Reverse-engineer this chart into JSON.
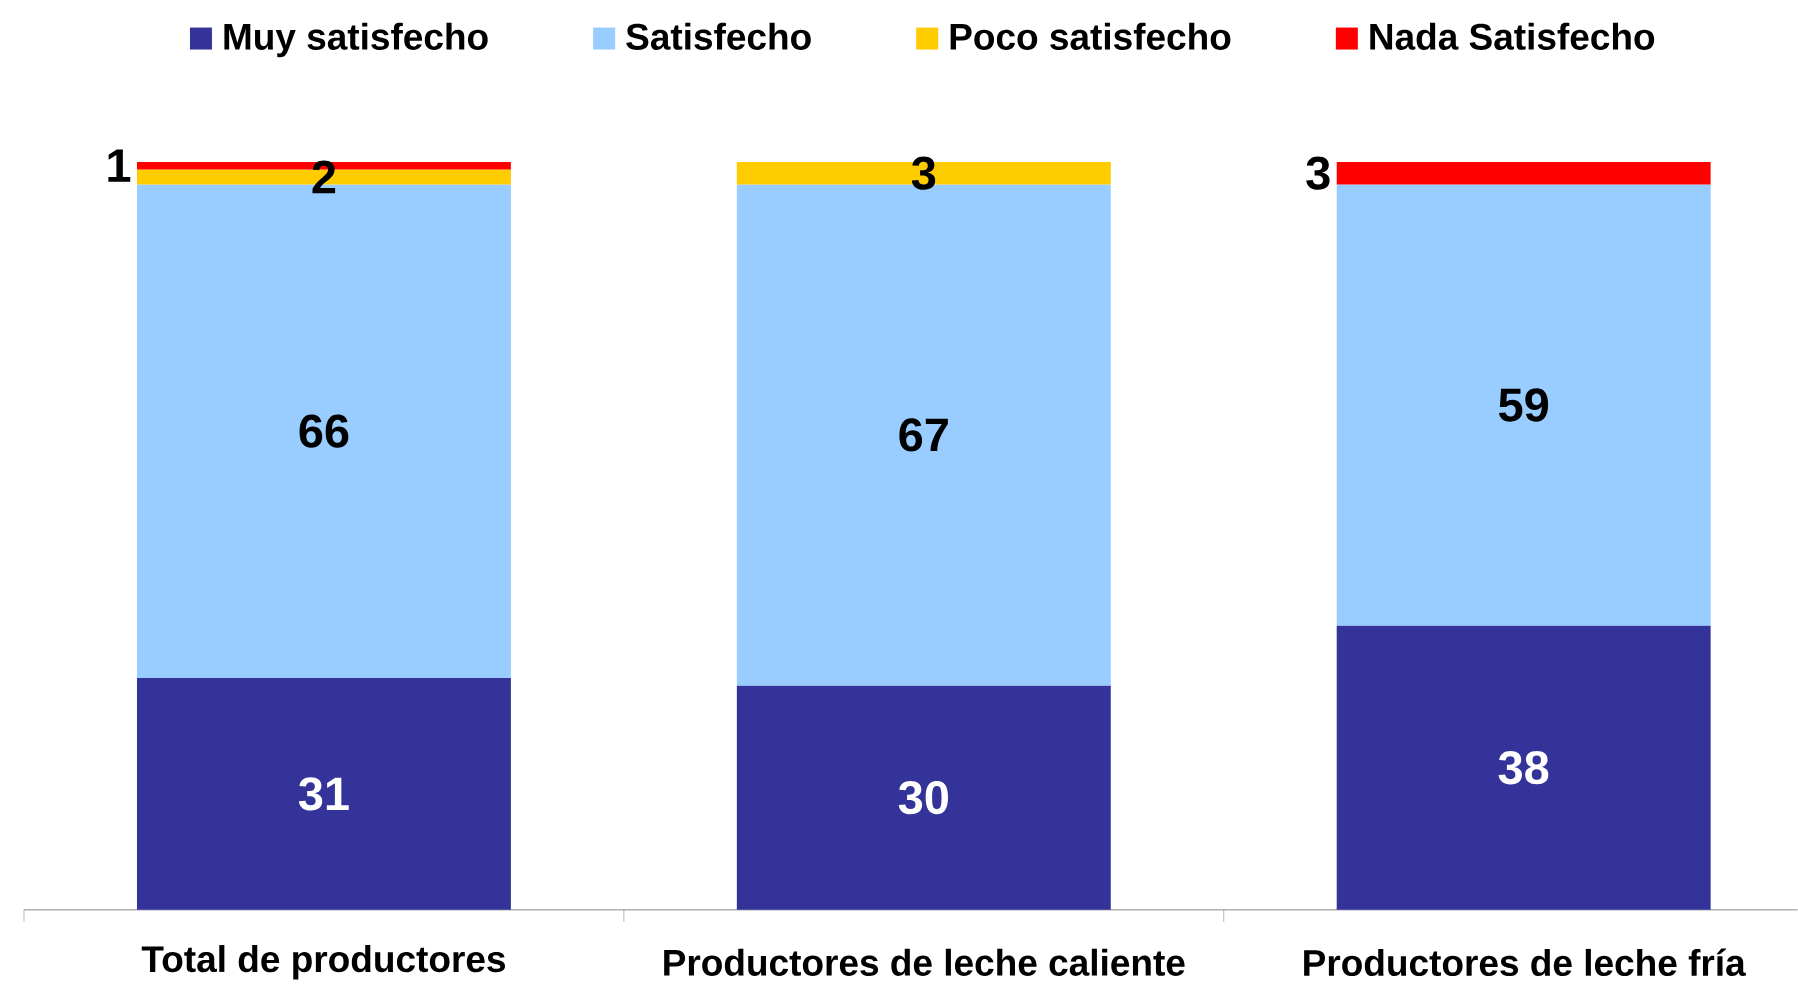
{
  "chart_data": {
    "type": "bar",
    "stacked": true,
    "categories": [
      "Total de productores",
      "Productores de leche caliente",
      "Productores de leche fría"
    ],
    "series": [
      {
        "name": "Muy satisfecho",
        "color": "#333399",
        "values": [
          31,
          30,
          38
        ]
      },
      {
        "name": "Satisfecho",
        "color": "#99ccff",
        "values": [
          66,
          67,
          59
        ]
      },
      {
        "name": "Poco satisfecho",
        "color": "#ffcc00",
        "values": [
          2,
          3,
          null
        ]
      },
      {
        "name": "Nada Satisfecho",
        "color": "#ff0000",
        "values": [
          1,
          null,
          3
        ]
      }
    ],
    "ylim": [
      0,
      100
    ],
    "data_labels": true,
    "legend": "top",
    "tick_labels": "x"
  }
}
